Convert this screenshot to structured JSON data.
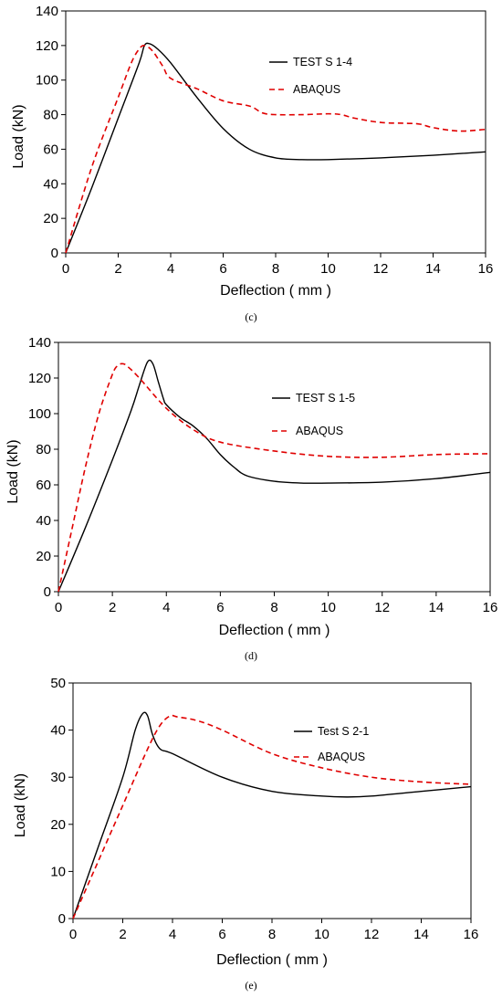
{
  "chart_data": [
    {
      "type": "line",
      "caption": "(c)",
      "xlabel": "Deflection ( mm )",
      "ylabel": "Load (kN)",
      "xlim": [
        0,
        16
      ],
      "ylim": [
        0,
        140
      ],
      "xticks": [
        0,
        2,
        4,
        6,
        8,
        10,
        12,
        14,
        16
      ],
      "yticks": [
        0,
        20,
        40,
        60,
        80,
        100,
        120,
        140
      ],
      "grid": false,
      "legend_position": "top-right",
      "series": [
        {
          "name": "TEST S 1-4",
          "color": "#000000",
          "dash": "solid",
          "x": [
            0,
            1,
            2,
            2.8,
            3.0,
            3.2,
            3.5,
            4.0,
            5.0,
            6.0,
            7.0,
            8.0,
            9.0,
            10.0,
            12.0,
            14.0,
            16.0
          ],
          "y": [
            0,
            38,
            78,
            110,
            120,
            121,
            118,
            110,
            90,
            72,
            60,
            55,
            54,
            54,
            55,
            56.5,
            58.5
          ]
        },
        {
          "name": "ABAQUS",
          "color": "#e00000",
          "dash": "dashed",
          "x": [
            0,
            1,
            2,
            2.5,
            2.8,
            3.0,
            3.3,
            3.7,
            4.0,
            5.0,
            6.0,
            7.0,
            7.5,
            8.0,
            9.0,
            10.0,
            10.5,
            11.0,
            12.0,
            13.0,
            13.5,
            14.0,
            15.0,
            16.0
          ],
          "y": [
            0,
            50,
            90,
            110,
            118,
            120,
            117,
            108,
            101,
            95,
            88,
            85,
            81,
            80,
            80,
            80.5,
            80,
            78,
            75.5,
            75,
            74.5,
            72.5,
            70.5,
            71.5
          ]
        }
      ]
    },
    {
      "type": "line",
      "caption": "(d)",
      "xlabel": "Deflection ( mm )",
      "ylabel": "Load (kN)",
      "xlim": [
        0,
        16
      ],
      "ylim": [
        0,
        140
      ],
      "xticks": [
        0,
        2,
        4,
        6,
        8,
        10,
        12,
        14,
        16
      ],
      "yticks": [
        0,
        20,
        40,
        60,
        80,
        100,
        120,
        140
      ],
      "grid": false,
      "legend_position": "top-right",
      "series": [
        {
          "name": "TEST S 1-5",
          "color": "#000000",
          "dash": "solid",
          "x": [
            0,
            1,
            2,
            2.7,
            3.0,
            3.3,
            3.5,
            3.7,
            3.9,
            4.0,
            4.5,
            5.0,
            5.5,
            6.0,
            6.5,
            7.0,
            8.0,
            9.0,
            10.0,
            12.0,
            14.0,
            16.0
          ],
          "y": [
            0,
            36,
            74,
            102,
            116,
            129,
            128,
            118,
            108,
            105,
            98,
            93,
            86,
            77,
            70,
            65,
            62,
            61,
            61,
            61.5,
            63.5,
            67
          ]
        },
        {
          "name": "ABAQUS",
          "color": "#e00000",
          "dash": "dashed",
          "x": [
            0,
            0.5,
            1,
            1.5,
            2.0,
            2.2,
            2.4,
            2.6,
            3.0,
            4.0,
            5.0,
            6.0,
            8.0,
            10.0,
            12.0,
            14.0,
            16.0
          ],
          "y": [
            0,
            35,
            70,
            100,
            122,
            127,
            128,
            126,
            120,
            103,
            91,
            84,
            79,
            76,
            75.5,
            77,
            77.5
          ]
        }
      ]
    },
    {
      "type": "line",
      "caption": "(e)",
      "xlabel": "Deflection ( mm )",
      "ylabel": "Load (kN)",
      "xlim": [
        0,
        16
      ],
      "ylim": [
        0,
        50
      ],
      "xticks": [
        0,
        2,
        4,
        6,
        8,
        10,
        12,
        14,
        16
      ],
      "yticks": [
        0,
        10,
        20,
        30,
        40,
        50
      ],
      "grid": false,
      "legend_position": "top-right",
      "series": [
        {
          "name": "Test S 2-1",
          "color": "#000000",
          "dash": "solid",
          "x": [
            0,
            1,
            2,
            2.5,
            2.8,
            3.0,
            3.2,
            3.5,
            4.0,
            6.0,
            8.0,
            10.0,
            11.0,
            12.0,
            14.0,
            16.0
          ],
          "y": [
            0,
            15,
            30,
            40,
            43.5,
            43,
            39,
            36,
            35,
            30,
            27,
            26,
            25.8,
            26,
            27,
            28
          ]
        },
        {
          "name": "ABAQUS",
          "color": "#e00000",
          "dash": "dashed",
          "x": [
            0,
            1,
            2,
            3,
            3.5,
            3.9,
            4.2,
            5.0,
            6.0,
            8.0,
            10.0,
            12.0,
            14.0,
            16.0
          ],
          "y": [
            0,
            12,
            24,
            36,
            41,
            43,
            42.8,
            42,
            40,
            35,
            32,
            30,
            29,
            28.5
          ]
        }
      ]
    }
  ]
}
